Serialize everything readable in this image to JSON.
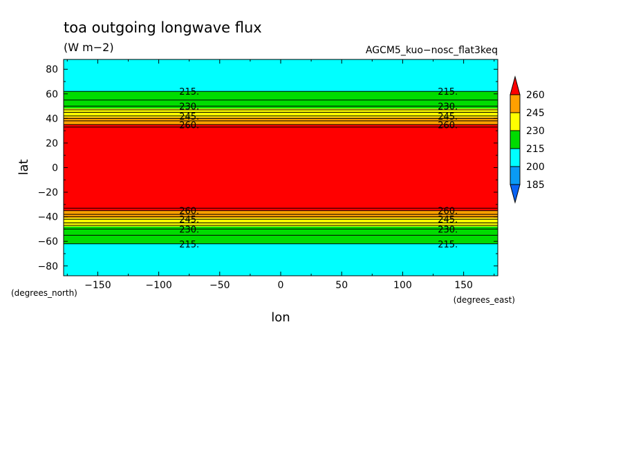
{
  "chart_data": {
    "type": "heatmap",
    "title": "toa outgoing longwave flux",
    "units": "(W m−2)",
    "subtitle": "AGCM5_kuo−nosc_flat3keq",
    "xlabel": "lon",
    "ylabel": "lat",
    "x_units": "(degrees_east)",
    "y_units": "(degrees_north)",
    "xlim": [
      -178,
      178
    ],
    "ylim": [
      -88,
      88
    ],
    "x_ticks": [
      -150,
      -100,
      -50,
      0,
      50,
      100,
      150
    ],
    "y_ticks": [
      -80,
      -60,
      -40,
      -20,
      0,
      20,
      40,
      60,
      80
    ],
    "x_tick_labels": [
      "−150",
      "−100",
      "−50",
      "0",
      "50",
      "100",
      "150"
    ],
    "y_tick_labels": [
      "−80",
      "−60",
      "−40",
      "−20",
      "0",
      "20",
      "40",
      "60",
      "80"
    ],
    "contour_levels": [
      185,
      200,
      215,
      230,
      245,
      260
    ],
    "fill_colors": [
      "#0a64f5",
      "#0a9bf5",
      "#00ffff",
      "#00dc00",
      "#ffff00",
      "#ffa000",
      "#ff0000"
    ],
    "colorbar_labels": [
      "185",
      "200",
      "215",
      "230",
      "245",
      "260"
    ],
    "bands": [
      {
        "lat_min": 62,
        "lat_max": 88,
        "color": "#00ffff"
      },
      {
        "lat_min": 48,
        "lat_max": 62,
        "color": "#00dc00"
      },
      {
        "lat_min": 41,
        "lat_max": 48,
        "color": "#ffff00"
      },
      {
        "lat_min": 35,
        "lat_max": 41,
        "color": "#ffa000"
      },
      {
        "lat_min": -35,
        "lat_max": 35,
        "color": "#ff0000"
      },
      {
        "lat_min": -41,
        "lat_max": -35,
        "color": "#ffa000"
      },
      {
        "lat_min": -48,
        "lat_max": -41,
        "color": "#ffff00"
      },
      {
        "lat_min": -62,
        "lat_max": -48,
        "color": "#00dc00"
      },
      {
        "lat_min": -88,
        "lat_max": -62,
        "color": "#00ffff"
      }
    ],
    "contours": [
      {
        "lat": 62,
        "level": 215,
        "label": "215."
      },
      {
        "lat": 55,
        "level": 222
      },
      {
        "lat": 50,
        "level": 230,
        "label": "230."
      },
      {
        "lat": 47,
        "level": 235
      },
      {
        "lat": 45,
        "level": 238
      },
      {
        "lat": 42,
        "level": 245,
        "label": "245."
      },
      {
        "lat": 40,
        "level": 250
      },
      {
        "lat": 38,
        "level": 255
      },
      {
        "lat": 35,
        "level": 260,
        "label": "260."
      },
      {
        "lat": 33,
        "level": 265
      },
      {
        "lat": -33,
        "level": 265
      },
      {
        "lat": -35,
        "level": 260,
        "label": "260."
      },
      {
        "lat": -38,
        "level": 255
      },
      {
        "lat": -40,
        "level": 250
      },
      {
        "lat": -42,
        "level": 245,
        "label": "245."
      },
      {
        "lat": -45,
        "level": 238
      },
      {
        "lat": -47,
        "level": 235
      },
      {
        "lat": -50,
        "level": 230,
        "label": "230."
      },
      {
        "lat": -55,
        "level": 222
      },
      {
        "lat": -62,
        "level": 215,
        "label": "215."
      }
    ],
    "contour_label_lons": [
      -75,
      137
    ]
  }
}
